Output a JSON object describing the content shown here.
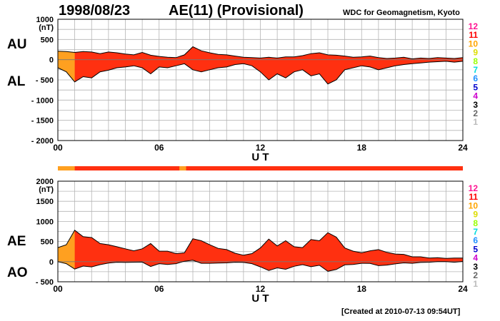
{
  "header": {
    "date": "1998/08/23",
    "title": "AE(11) (Provisional)",
    "source": "WDC for Geomagnetism, Kyoto"
  },
  "footer": {
    "created": "[Created at 2010-07-13 09:54UT]"
  },
  "colors": {
    "main_fill": "#ff3010",
    "early_fill": "#ffa020",
    "outline": "#000000",
    "grid": "#b4b4b4"
  },
  "station_counts": {
    "labels": [
      "12",
      "11",
      "10",
      "9",
      "8",
      "7",
      "6",
      "5",
      "4",
      "3",
      "2",
      "1"
    ],
    "colors": [
      "#ff1493",
      "#ff0000",
      "#ffa500",
      "#dddd00",
      "#99ff00",
      "#00dddd",
      "#1e90ff",
      "#0000cc",
      "#cc00cc",
      "#000000",
      "#666666",
      "#bbbbbb"
    ]
  },
  "chart_data": [
    {
      "type": "area",
      "panel": "upper",
      "top_label": "AU",
      "bottom_label": "AL",
      "unit": "(nT)",
      "xlabel": "U T",
      "x_ticks": [
        "00",
        "06",
        "12",
        "18",
        "24"
      ],
      "xlim": [
        0,
        24
      ],
      "ylim": [
        -2000,
        1000
      ],
      "y_ticks": [
        {
          "v": 1000,
          "t": "1000"
        },
        {
          "v": 500,
          "t": "500"
        },
        {
          "v": 0,
          "t": "0"
        },
        {
          "v": -500,
          "t": "- 500"
        },
        {
          "v": -1000,
          "t": "- 1000"
        },
        {
          "v": -1500,
          "t": "- 1500"
        },
        {
          "v": -2000,
          "t": "- 2000"
        }
      ],
      "series": [
        {
          "name": "AU",
          "x": [
            0,
            0.5,
            1,
            1.5,
            2,
            2.5,
            3,
            3.5,
            4,
            4.5,
            5,
            5.5,
            6,
            6.5,
            7,
            7.5,
            8,
            8.5,
            9,
            9.5,
            10,
            10.5,
            11,
            11.5,
            12,
            12.5,
            13,
            13.5,
            14,
            14.5,
            15,
            15.5,
            16,
            16.5,
            17,
            17.5,
            18,
            18.5,
            19,
            19.5,
            20,
            20.5,
            21,
            21.5,
            22,
            22.5,
            23,
            23.5,
            24
          ],
          "values": [
            210,
            200,
            180,
            200,
            190,
            150,
            190,
            170,
            140,
            120,
            180,
            110,
            80,
            60,
            50,
            120,
            320,
            220,
            170,
            130,
            120,
            90,
            60,
            50,
            40,
            60,
            40,
            70,
            70,
            100,
            150,
            170,
            120,
            110,
            90,
            60,
            70,
            90,
            50,
            30,
            40,
            60,
            20,
            40,
            30,
            50,
            40,
            30,
            50
          ]
        },
        {
          "name": "AL",
          "x": [
            0,
            0.5,
            1,
            1.5,
            2,
            2.5,
            3,
            3.5,
            4,
            4.5,
            5,
            5.5,
            6,
            6.5,
            7,
            7.5,
            8,
            8.5,
            9,
            9.5,
            10,
            10.5,
            11,
            11.5,
            12,
            12.5,
            13,
            13.5,
            14,
            14.5,
            15,
            15.5,
            16,
            16.5,
            17,
            17.5,
            18,
            18.5,
            19,
            19.5,
            20,
            20.5,
            21,
            21.5,
            22,
            22.5,
            23,
            23.5,
            24
          ],
          "values": [
            -200,
            -300,
            -550,
            -420,
            -450,
            -300,
            -260,
            -200,
            -180,
            -150,
            -200,
            -350,
            -180,
            -200,
            -150,
            -100,
            -250,
            -300,
            -250,
            -200,
            -180,
            -120,
            -100,
            -150,
            -300,
            -500,
            -350,
            -450,
            -300,
            -250,
            -400,
            -350,
            -600,
            -500,
            -250,
            -200,
            -150,
            -180,
            -250,
            -200,
            -150,
            -120,
            -100,
            -80,
            -60,
            -50,
            -40,
            -60,
            -40
          ]
        }
      ]
    },
    {
      "type": "area",
      "panel": "lower",
      "top_label": "AE",
      "bottom_label": "AO",
      "unit": "(nT)",
      "xlabel": "U T",
      "x_ticks": [
        "00",
        "06",
        "12",
        "18",
        "24"
      ],
      "xlim": [
        0,
        24
      ],
      "ylim": [
        -500,
        2000
      ],
      "y_ticks": [
        {
          "v": 2000,
          "t": "2000"
        },
        {
          "v": 1500,
          "t": "1500"
        },
        {
          "v": 1000,
          "t": "1000"
        },
        {
          "v": 500,
          "t": "500"
        },
        {
          "v": 0,
          "t": "0"
        },
        {
          "v": -500,
          "t": "- 500"
        }
      ],
      "series": [
        {
          "name": "AE",
          "x": [
            0,
            0.5,
            1,
            1.5,
            2,
            2.5,
            3,
            3.5,
            4,
            4.5,
            5,
            5.5,
            6,
            6.5,
            7,
            7.5,
            8,
            8.5,
            9,
            9.5,
            10,
            10.5,
            11,
            11.5,
            12,
            12.5,
            13,
            13.5,
            14,
            14.5,
            15,
            15.5,
            16,
            16.5,
            17,
            17.5,
            18,
            18.5,
            19,
            19.5,
            20,
            20.5,
            21,
            21.5,
            22,
            22.5,
            23,
            23.5,
            24
          ],
          "values": [
            350,
            420,
            780,
            620,
            600,
            450,
            420,
            370,
            320,
            270,
            320,
            450,
            260,
            260,
            200,
            220,
            570,
            520,
            420,
            330,
            300,
            210,
            160,
            200,
            340,
            560,
            390,
            520,
            370,
            350,
            550,
            520,
            720,
            610,
            340,
            260,
            220,
            270,
            300,
            230,
            190,
            180,
            120,
            120,
            90,
            100,
            80,
            90,
            90
          ]
        },
        {
          "name": "AO",
          "x": [
            0,
            0.5,
            1,
            1.5,
            2,
            2.5,
            3,
            3.5,
            4,
            4.5,
            5,
            5.5,
            6,
            6.5,
            7,
            7.5,
            8,
            8.5,
            9,
            9.5,
            10,
            10.5,
            11,
            11.5,
            12,
            12.5,
            13,
            13.5,
            14,
            14.5,
            15,
            15.5,
            16,
            16.5,
            17,
            17.5,
            18,
            18.5,
            19,
            19.5,
            20,
            20.5,
            21,
            21.5,
            22,
            22.5,
            23,
            23.5,
            24
          ],
          "values": [
            0,
            -50,
            -185,
            -110,
            -130,
            -75,
            -35,
            -15,
            -20,
            -15,
            -10,
            -120,
            -50,
            -70,
            -50,
            10,
            35,
            -40,
            -40,
            -35,
            -30,
            -15,
            -20,
            -50,
            -130,
            -220,
            -155,
            -190,
            -115,
            -75,
            -125,
            -90,
            -240,
            -195,
            -80,
            -70,
            -40,
            -45,
            -100,
            -85,
            -55,
            -30,
            -40,
            -20,
            -15,
            0,
            0,
            -15,
            5
          ]
        }
      ]
    }
  ]
}
